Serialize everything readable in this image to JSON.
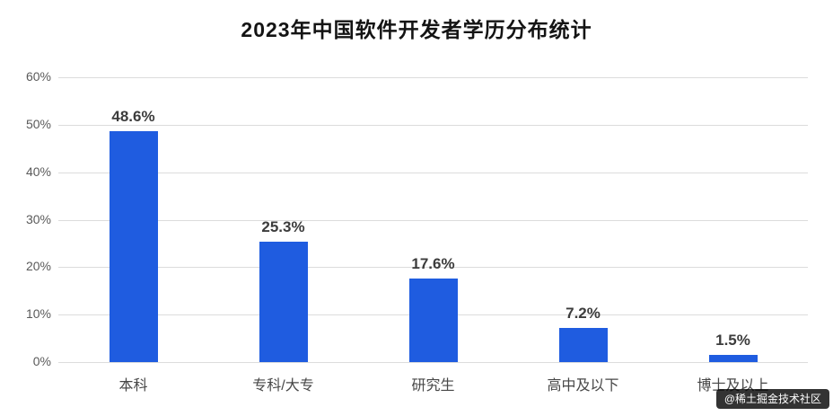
{
  "watermark": {
    "text": "@稀土掘金技术社区"
  },
  "colors": {
    "bar": "#1f5ce0",
    "grid": "#dcdcdc",
    "title_text": "#141414",
    "axis_text": "#5a5a5a",
    "value_text": "#3c3c3c",
    "watermark_bg": "rgba(0,0,0,0.8)",
    "watermark_text": "#ffffff"
  },
  "chart_data": {
    "type": "bar",
    "title": "2023年中国软件开发者学历分布统计",
    "categories": [
      "本科",
      "专科/大专",
      "研究生",
      "高中及以下",
      "博士及以上"
    ],
    "values": [
      48.6,
      25.3,
      17.6,
      7.2,
      1.5
    ],
    "value_labels": [
      "48.6%",
      "25.3%",
      "17.6%",
      "7.2%",
      "1.5%"
    ],
    "xlabel": "",
    "ylabel": "",
    "ylim": [
      0,
      60
    ],
    "ytick_step": 10,
    "ytick_labels": [
      "0%",
      "10%",
      "20%",
      "30%",
      "40%",
      "50%",
      "60%"
    ],
    "grid": true,
    "legend": "none"
  }
}
